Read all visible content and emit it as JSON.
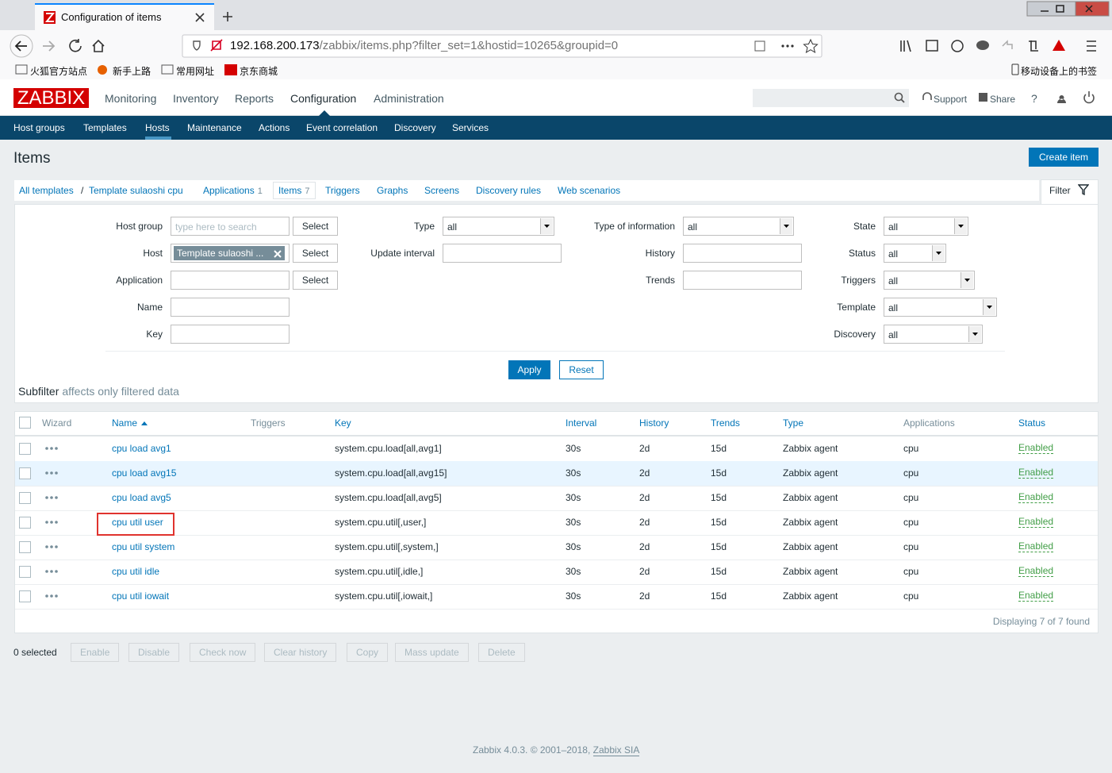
{
  "browser": {
    "tab_title": "Configuration of items",
    "url_host": "192.168.200.173",
    "url_rest": "/zabbix/items.php?filter_set=1&hostid=10265&groupid=0",
    "bookmarks": [
      "火狐官方站点",
      "新手上路",
      "常用网址",
      "京东商城"
    ],
    "mobile_bookmarks": "移动设备上的书签"
  },
  "header": {
    "logo": "ZABBIX",
    "menu": [
      "Monitoring",
      "Inventory",
      "Reports",
      "Configuration",
      "Administration"
    ],
    "active_menu": 3,
    "support": "Support",
    "share": "Share",
    "help": "?"
  },
  "submenu": {
    "items": [
      "Host groups",
      "Templates",
      "Hosts",
      "Maintenance",
      "Actions",
      "Event correlation",
      "Discovery",
      "Services"
    ],
    "active": 2
  },
  "page": {
    "title": "Items",
    "create_button": "Create item"
  },
  "breadcrumbs": {
    "all": "All templates",
    "separator": "/",
    "template": "Template sulaoshi cpu",
    "tabs": [
      {
        "label": "Applications",
        "count": 1
      },
      {
        "label": "Items",
        "count": 7
      },
      {
        "label": "Triggers"
      },
      {
        "label": "Graphs"
      },
      {
        "label": "Screens"
      },
      {
        "label": "Discovery rules"
      },
      {
        "label": "Web scenarios"
      }
    ],
    "active_tab": 1
  },
  "filter": {
    "label": "Filter",
    "columns": [
      [
        {
          "label": "Host group",
          "placeholder": "type here to search",
          "button": "Select"
        },
        {
          "label": "Host",
          "tag": "Template sulaoshi ...",
          "button": "Select"
        },
        {
          "label": "Application",
          "button": "Select"
        },
        {
          "label": "Name"
        },
        {
          "label": "Key"
        }
      ],
      [
        {
          "label": "Type",
          "select": "all"
        },
        {
          "label": "Update interval"
        }
      ],
      [
        {
          "label": "Type of information",
          "select": "all"
        },
        {
          "label": "History"
        },
        {
          "label": "Trends"
        }
      ],
      [
        {
          "label": "State",
          "select": "all"
        },
        {
          "label": "Status",
          "select": "all"
        },
        {
          "label": "Triggers",
          "select": "all"
        },
        {
          "label": "Template",
          "select": "all"
        },
        {
          "label": "Discovery",
          "select": "all"
        }
      ]
    ],
    "apply": "Apply",
    "reset": "Reset"
  },
  "subfilter": {
    "label": "Subfilter",
    "note": "affects only filtered data"
  },
  "table": {
    "columns": [
      "Wizard",
      "Name",
      "Triggers",
      "Key",
      "Interval",
      "History",
      "Trends",
      "Type",
      "Applications",
      "Status"
    ],
    "sortable": [
      false,
      true,
      false,
      true,
      true,
      true,
      true,
      true,
      false,
      true
    ],
    "rows": [
      {
        "name": "cpu load avg1",
        "key": "system.cpu.load[all,avg1]",
        "interval": "30s",
        "history": "2d",
        "trends": "15d",
        "type": "Zabbix agent",
        "applications": "cpu",
        "status": "Enabled"
      },
      {
        "name": "cpu load avg15",
        "key": "system.cpu.load[all,avg15]",
        "interval": "30s",
        "history": "2d",
        "trends": "15d",
        "type": "Zabbix agent",
        "applications": "cpu",
        "status": "Enabled"
      },
      {
        "name": "cpu load avg5",
        "key": "system.cpu.load[all,avg5]",
        "interval": "30s",
        "history": "2d",
        "trends": "15d",
        "type": "Zabbix agent",
        "applications": "cpu",
        "status": "Enabled"
      },
      {
        "name": "cpu util user",
        "key": "system.cpu.util[,user,]",
        "interval": "30s",
        "history": "2d",
        "trends": "15d",
        "type": "Zabbix agent",
        "applications": "cpu",
        "status": "Enabled"
      },
      {
        "name": "cpu util system",
        "key": "system.cpu.util[,system,]",
        "interval": "30s",
        "history": "2d",
        "trends": "15d",
        "type": "Zabbix agent",
        "applications": "cpu",
        "status": "Enabled"
      },
      {
        "name": "cpu util idle",
        "key": "system.cpu.util[,idle,]",
        "interval": "30s",
        "history": "2d",
        "trends": "15d",
        "type": "Zabbix agent",
        "applications": "cpu",
        "status": "Enabled"
      },
      {
        "name": "cpu util iowait",
        "key": "system.cpu.util[,iowait,]",
        "interval": "30s",
        "history": "2d",
        "trends": "15d",
        "type": "Zabbix agent",
        "applications": "cpu",
        "status": "Enabled"
      }
    ],
    "highlighted_row": 1,
    "boxed_row": 3,
    "count_text": "Displaying 7 of 7 found"
  },
  "actions": {
    "selected": "0 selected",
    "buttons": [
      "Enable",
      "Disable",
      "Check now",
      "Clear history",
      "Copy",
      "Mass update",
      "Delete"
    ]
  },
  "footer": {
    "text": "Zabbix 4.0.3. © 2001–2018,",
    "link": "Zabbix SIA"
  }
}
